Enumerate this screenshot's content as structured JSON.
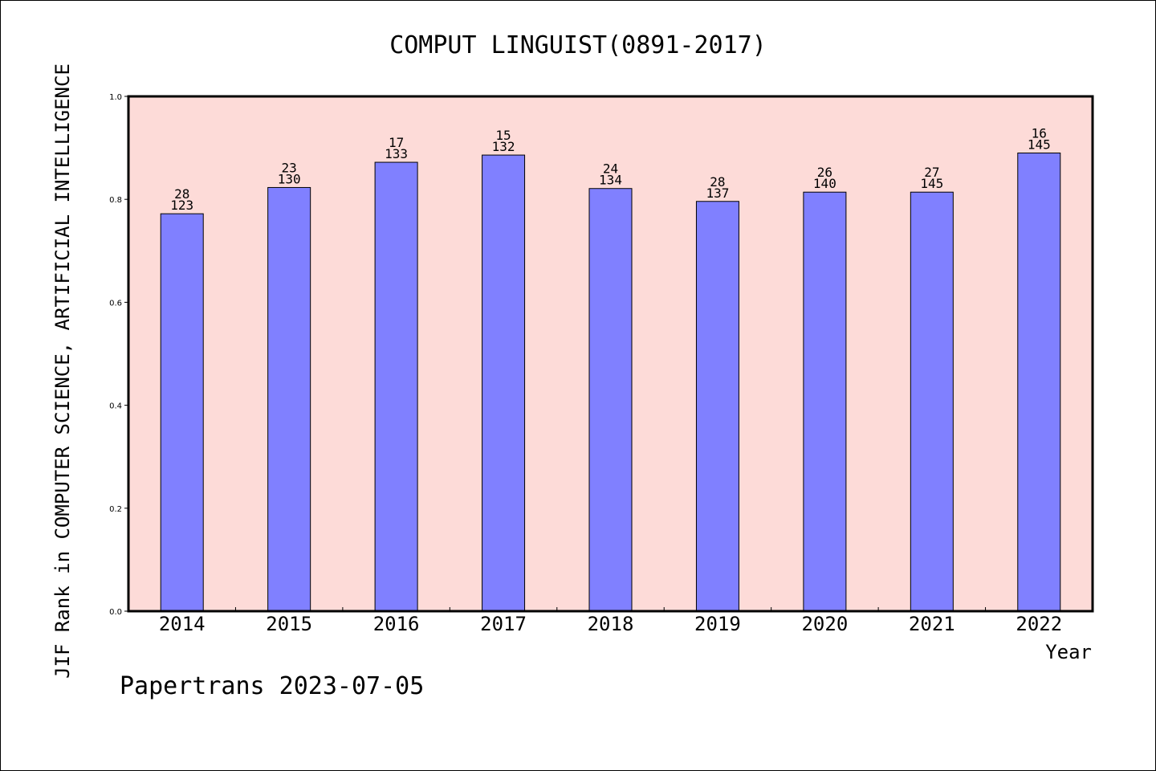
{
  "chart_data": {
    "type": "bar",
    "title": "COMPUT LINGUIST(0891-2017)",
    "xlabel": "Year",
    "ylabel": "JIF Rank in COMPUTER SCIENCE, ARTIFICIAL INTELLIGENCE",
    "categories": [
      "2014",
      "2015",
      "2016",
      "2017",
      "2018",
      "2019",
      "2020",
      "2021",
      "2022"
    ],
    "values": [
      0.772,
      0.823,
      0.872,
      0.886,
      0.821,
      0.796,
      0.814,
      0.814,
      0.89
    ],
    "ranks": [
      "28",
      "23",
      "17",
      "15",
      "24",
      "28",
      "26",
      "27",
      "16"
    ],
    "totals": [
      "123",
      "130",
      "133",
      "132",
      "134",
      "137",
      "140",
      "145",
      "145"
    ],
    "ylim": [
      0,
      1.0
    ],
    "yticks": [
      "0.0",
      "0.2",
      "0.4",
      "0.6",
      "0.8",
      "1.0"
    ],
    "grid": false,
    "colors": {
      "plot_bg": "#fddbd8",
      "bar": "#8080ff",
      "bar_edge": "#000000"
    }
  },
  "footer": "Papertrans 2023-07-05"
}
